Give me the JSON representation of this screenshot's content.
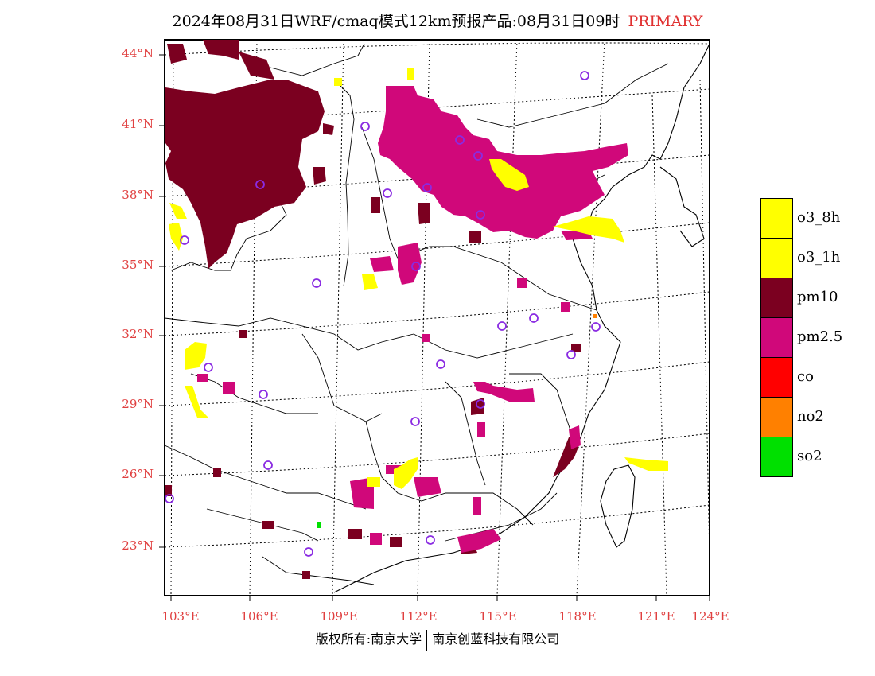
{
  "title": {
    "main": "2024年08月31日WRF/cmaq模式12km预报产品:08月31日09时",
    "tag": "PRIMARY"
  },
  "axes": {
    "lat_labels": [
      "44°N",
      "41°N",
      "38°N",
      "35°N",
      "32°N",
      "29°N",
      "26°N",
      "23°N"
    ],
    "lon_labels": [
      "103°E",
      "106°E",
      "109°E",
      "112°E",
      "115°E",
      "118°E",
      "121°E",
      "124°E"
    ]
  },
  "legend": [
    {
      "label": "o3_8h",
      "color": "#ffff00"
    },
    {
      "label": "o3_1h",
      "color": "#ffff00"
    },
    {
      "label": "pm10",
      "color": "#7b0020"
    },
    {
      "label": "pm2.5",
      "color": "#d0087a"
    },
    {
      "label": "co",
      "color": "#ff0000"
    },
    {
      "label": "no2",
      "color": "#ff8000"
    },
    {
      "label": "so2",
      "color": "#00e000"
    }
  ],
  "footer": {
    "left": "版权所有:南京大学",
    "right": "南京创蓝科技有限公司"
  }
}
